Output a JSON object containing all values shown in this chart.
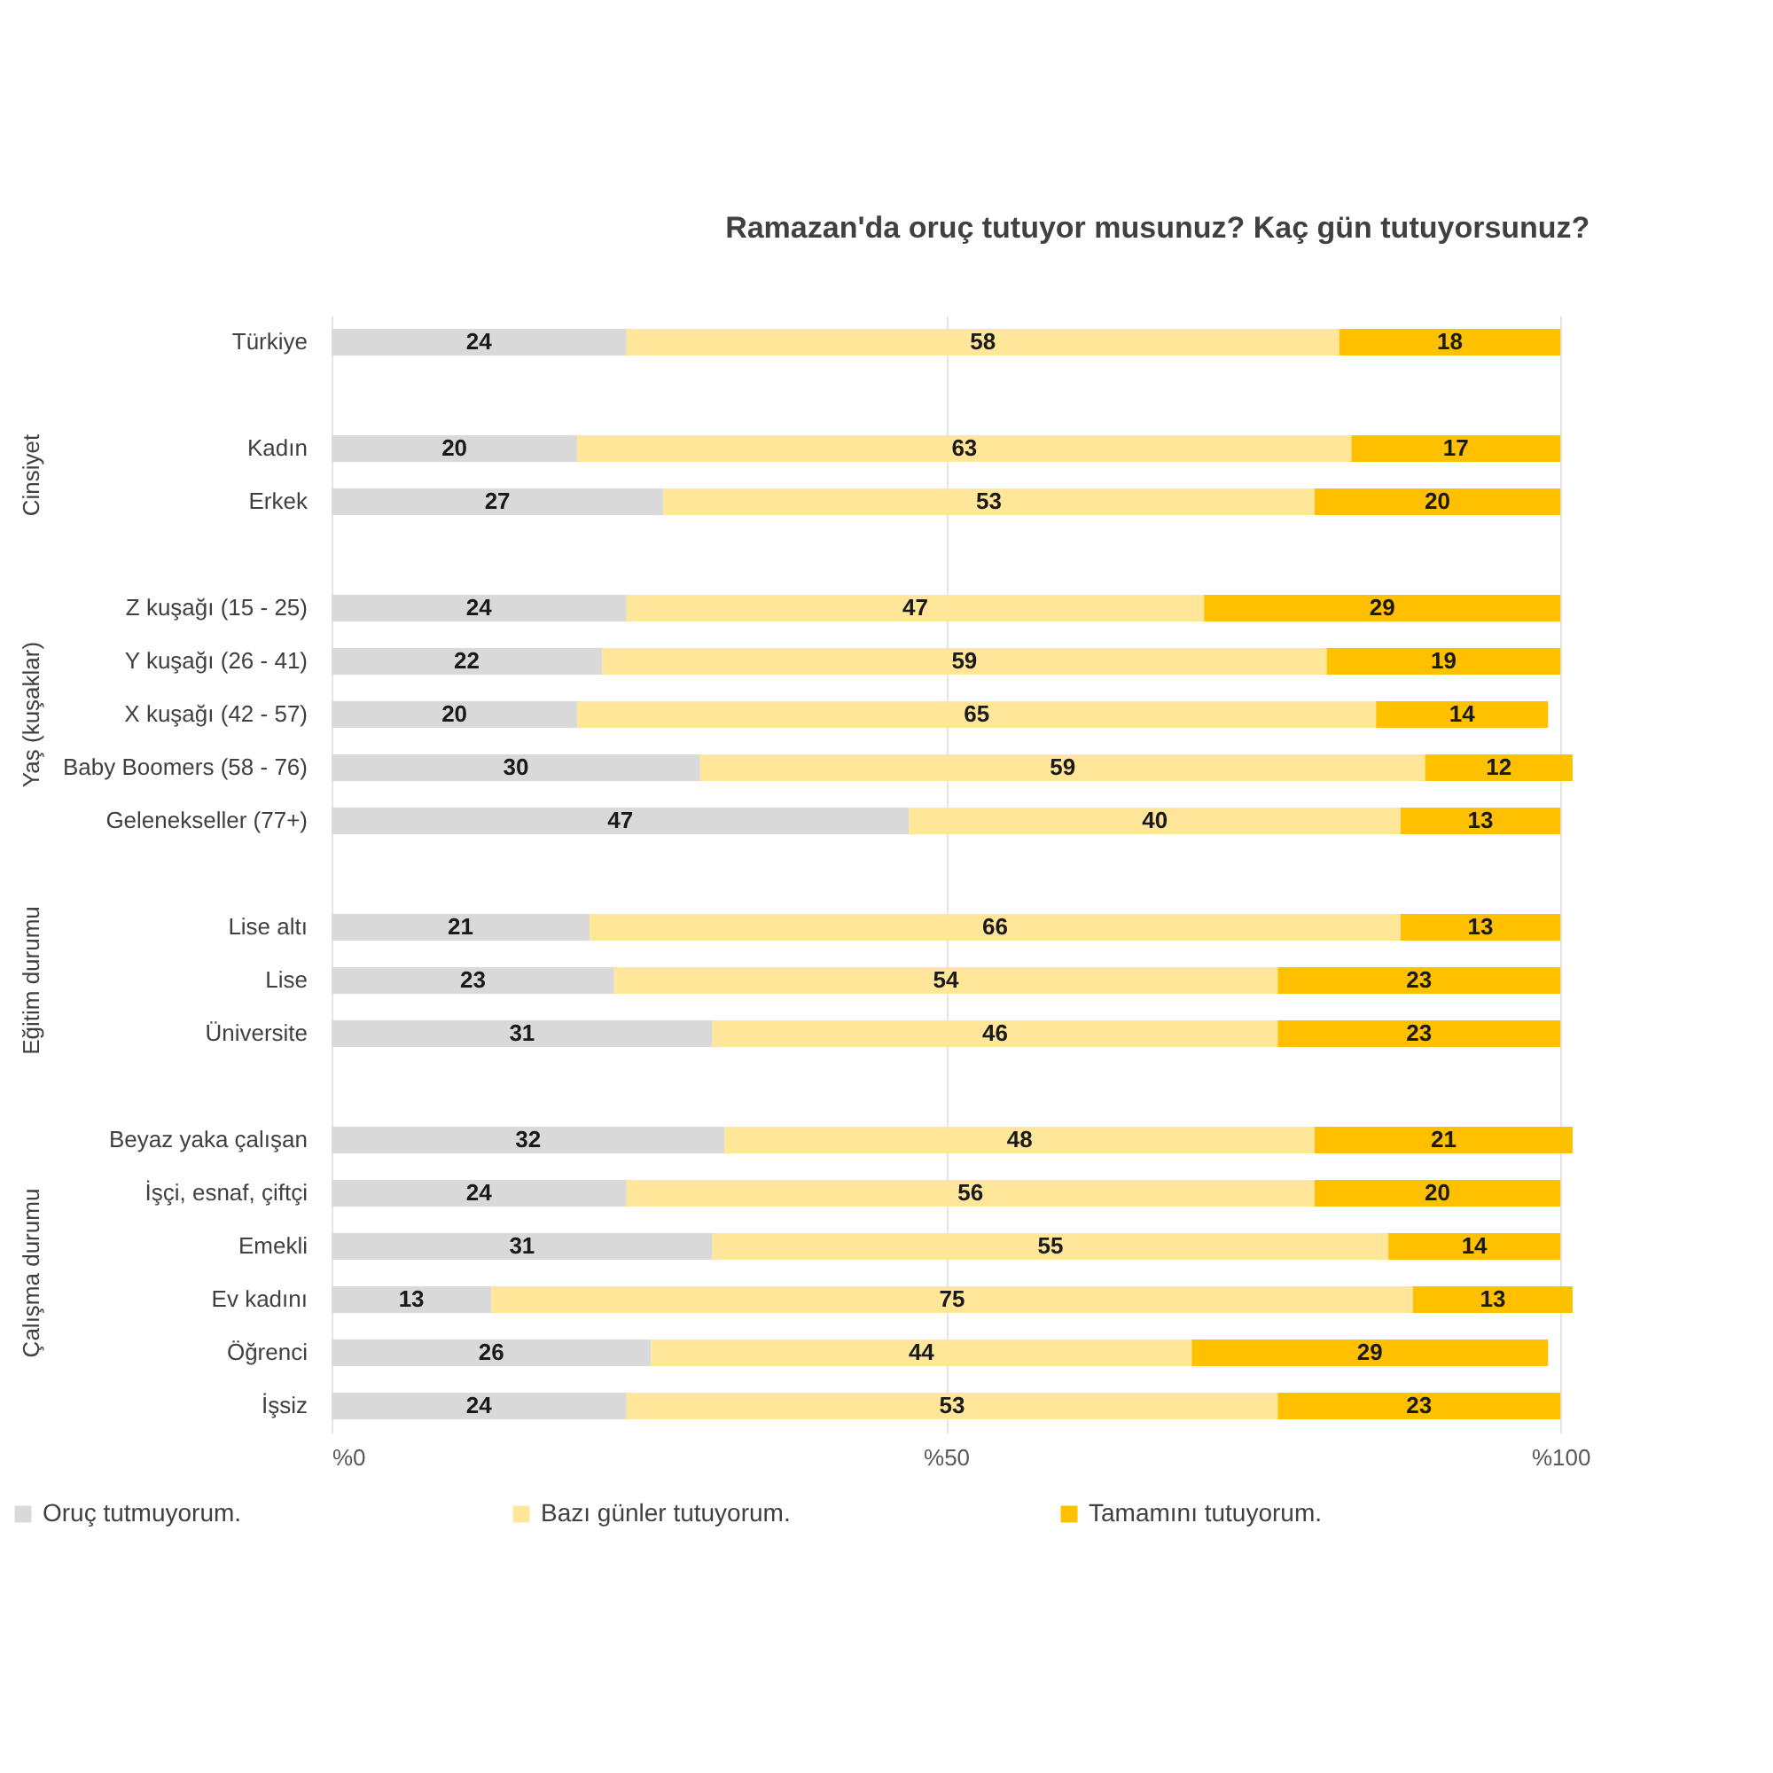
{
  "chart_data": {
    "type": "bar",
    "orientation": "horizontal",
    "stacked": true,
    "title": "Ramazan'da oruç tutuyor musunuz? Kaç gün tutuyorsunuz?",
    "categories": [
      "Türkiye",
      null,
      "Kadın",
      "Erkek",
      null,
      "Z kuşağı (15 - 25)",
      "Y kuşağı (26 - 41)",
      "X kuşağı (42 - 57)",
      "Baby Boomers (58 - 76)",
      "Gelenekseller (77+)",
      null,
      "Lise altı",
      "Lise",
      "Üniversite",
      null,
      "Beyaz yaka çalışan",
      "İşçi, esnaf, çiftçi",
      "Emekli",
      "Ev kadını",
      "Öğrenci",
      "İşsiz"
    ],
    "series": [
      {
        "name": "Oruç tutmuyorum.",
        "color": "#d9d9d9",
        "values": [
          24,
          null,
          20,
          27,
          null,
          24,
          22,
          20,
          30,
          47,
          null,
          21,
          23,
          31,
          null,
          32,
          24,
          31,
          13,
          26,
          24
        ]
      },
      {
        "name": "Bazı günler tutuyorum.",
        "color": "#ffe699",
        "values": [
          58,
          null,
          63,
          53,
          null,
          47,
          59,
          65,
          59,
          40,
          null,
          66,
          54,
          46,
          null,
          48,
          56,
          55,
          75,
          44,
          53
        ]
      },
      {
        "name": "Tamamını tutuyorum.",
        "color": "#ffc000",
        "values": [
          18,
          null,
          17,
          20,
          null,
          29,
          19,
          14,
          12,
          13,
          null,
          13,
          23,
          23,
          null,
          21,
          20,
          14,
          13,
          29,
          23
        ]
      }
    ],
    "xlim": [
      0,
      101
    ],
    "xticks": [
      {
        "value": 0,
        "label": "%0"
      },
      {
        "value": 50,
        "label": "%50"
      },
      {
        "value": 100,
        "label": "%100"
      }
    ],
    "grid": "x",
    "legend": "bottom",
    "data_labels": true,
    "annotations": [
      "Cinsiyet",
      "Yaş (kuşaklar)",
      "Eğitim durumu",
      "Çalışma durumu"
    ]
  }
}
